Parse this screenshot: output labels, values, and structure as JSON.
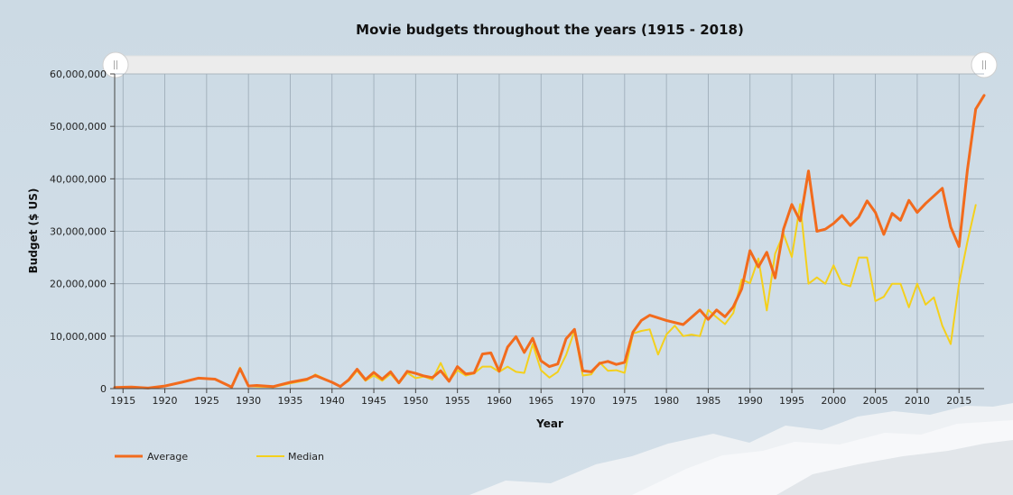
{
  "chart_data": {
    "type": "line",
    "title": "Movie budgets throughout the years (1915 - 2018)",
    "xlabel": "Year",
    "ylabel": "Budget ($ US)",
    "xlim": [
      1914,
      2018
    ],
    "ylim": [
      0,
      60000000
    ],
    "xticks": [
      1915,
      1920,
      1925,
      1930,
      1935,
      1940,
      1945,
      1950,
      1955,
      1960,
      1965,
      1970,
      1975,
      1980,
      1985,
      1990,
      1995,
      2000,
      2005,
      2010,
      2015
    ],
    "yticks": [
      0,
      10000000,
      20000000,
      30000000,
      40000000,
      50000000,
      60000000
    ],
    "ytick_labels": [
      "0",
      "10,000,000",
      "20,000,000",
      "30,000,000",
      "40,000,000",
      "50,000,000",
      "60,000,000"
    ],
    "grid": true,
    "legend_position": "bottom-left",
    "series": [
      {
        "name": "Average",
        "color": "#f26b1d",
        "points": [
          [
            1914,
            200000
          ],
          [
            1916,
            300000
          ],
          [
            1918,
            100000
          ],
          [
            1920,
            500000
          ],
          [
            1922,
            1200000
          ],
          [
            1924,
            2000000
          ],
          [
            1926,
            1800000
          ],
          [
            1928,
            300000
          ],
          [
            1929,
            3800000
          ],
          [
            1930,
            500000
          ],
          [
            1931,
            600000
          ],
          [
            1933,
            400000
          ],
          [
            1935,
            1200000
          ],
          [
            1937,
            1800000
          ],
          [
            1938,
            2500000
          ],
          [
            1940,
            1200000
          ],
          [
            1941,
            400000
          ],
          [
            1942,
            1700000
          ],
          [
            1943,
            3700000
          ],
          [
            1944,
            1700000
          ],
          [
            1945,
            3100000
          ],
          [
            1946,
            1800000
          ],
          [
            1947,
            3200000
          ],
          [
            1948,
            1100000
          ],
          [
            1949,
            3300000
          ],
          [
            1950,
            2900000
          ],
          [
            1951,
            2400000
          ],
          [
            1952,
            2100000
          ],
          [
            1953,
            3400000
          ],
          [
            1954,
            1400000
          ],
          [
            1955,
            4200000
          ],
          [
            1956,
            2800000
          ],
          [
            1957,
            3000000
          ],
          [
            1958,
            6600000
          ],
          [
            1959,
            6800000
          ],
          [
            1960,
            3300000
          ],
          [
            1961,
            7900000
          ],
          [
            1962,
            9900000
          ],
          [
            1963,
            6900000
          ],
          [
            1964,
            9600000
          ],
          [
            1965,
            5300000
          ],
          [
            1966,
            4200000
          ],
          [
            1967,
            4700000
          ],
          [
            1968,
            9500000
          ],
          [
            1969,
            11300000
          ],
          [
            1970,
            3400000
          ],
          [
            1971,
            3200000
          ],
          [
            1972,
            4800000
          ],
          [
            1973,
            5200000
          ],
          [
            1974,
            4600000
          ],
          [
            1975,
            5000000
          ],
          [
            1976,
            10800000
          ],
          [
            1977,
            13000000
          ],
          [
            1978,
            14000000
          ],
          [
            1980,
            13000000
          ],
          [
            1982,
            12200000
          ],
          [
            1984,
            15000000
          ],
          [
            1985,
            13200000
          ],
          [
            1986,
            15000000
          ],
          [
            1987,
            13700000
          ],
          [
            1988,
            15600000
          ],
          [
            1989,
            19000000
          ],
          [
            1990,
            26300000
          ],
          [
            1991,
            23200000
          ],
          [
            1992,
            26000000
          ],
          [
            1993,
            21100000
          ],
          [
            1994,
            30400000
          ],
          [
            1995,
            35100000
          ],
          [
            1996,
            32000000
          ],
          [
            1997,
            41500000
          ],
          [
            1998,
            30000000
          ],
          [
            1999,
            30400000
          ],
          [
            2000,
            31500000
          ],
          [
            2001,
            33000000
          ],
          [
            2002,
            31100000
          ],
          [
            2003,
            32700000
          ],
          [
            2004,
            35800000
          ],
          [
            2005,
            33600000
          ],
          [
            2006,
            29400000
          ],
          [
            2007,
            33400000
          ],
          [
            2008,
            32100000
          ],
          [
            2009,
            35900000
          ],
          [
            2010,
            33600000
          ],
          [
            2011,
            35300000
          ],
          [
            2013,
            38200000
          ],
          [
            2014,
            30800000
          ],
          [
            2015,
            27100000
          ],
          [
            2016,
            41700000
          ],
          [
            2017,
            53300000
          ],
          [
            2018,
            55900000
          ]
        ]
      },
      {
        "name": "Median",
        "color": "#f4d01c",
        "points": [
          [
            1914,
            200000
          ],
          [
            1916,
            300000
          ],
          [
            1918,
            100000
          ],
          [
            1920,
            500000
          ],
          [
            1922,
            1200000
          ],
          [
            1924,
            2000000
          ],
          [
            1926,
            1800000
          ],
          [
            1928,
            300000
          ],
          [
            1929,
            4000000
          ],
          [
            1930,
            500000
          ],
          [
            1931,
            400000
          ],
          [
            1933,
            300000
          ],
          [
            1935,
            1000000
          ],
          [
            1937,
            1600000
          ],
          [
            1938,
            2700000
          ],
          [
            1940,
            1200000
          ],
          [
            1941,
            400000
          ],
          [
            1942,
            1500000
          ],
          [
            1943,
            3400000
          ],
          [
            1944,
            1500000
          ],
          [
            1945,
            2500000
          ],
          [
            1946,
            1500000
          ],
          [
            1947,
            2800000
          ],
          [
            1948,
            1000000
          ],
          [
            1949,
            3000000
          ],
          [
            1950,
            2000000
          ],
          [
            1951,
            2300000
          ],
          [
            1952,
            1700000
          ],
          [
            1953,
            4900000
          ],
          [
            1954,
            1400000
          ],
          [
            1955,
            3500000
          ],
          [
            1956,
            2500000
          ],
          [
            1957,
            2900000
          ],
          [
            1958,
            4200000
          ],
          [
            1959,
            4200000
          ],
          [
            1960,
            3200000
          ],
          [
            1961,
            4200000
          ],
          [
            1962,
            3200000
          ],
          [
            1963,
            3000000
          ],
          [
            1964,
            8500000
          ],
          [
            1965,
            3500000
          ],
          [
            1966,
            2100000
          ],
          [
            1967,
            3200000
          ],
          [
            1968,
            6400000
          ],
          [
            1969,
            11000000
          ],
          [
            1970,
            2500000
          ],
          [
            1971,
            2700000
          ],
          [
            1972,
            5000000
          ],
          [
            1973,
            3400000
          ],
          [
            1974,
            3500000
          ],
          [
            1975,
            3000000
          ],
          [
            1976,
            10500000
          ],
          [
            1977,
            11000000
          ],
          [
            1978,
            11300000
          ],
          [
            1979,
            6500000
          ],
          [
            1980,
            10300000
          ],
          [
            1981,
            12000000
          ],
          [
            1982,
            10000000
          ],
          [
            1983,
            10300000
          ],
          [
            1984,
            10000000
          ],
          [
            1985,
            15000000
          ],
          [
            1986,
            13600000
          ],
          [
            1987,
            12300000
          ],
          [
            1988,
            14400000
          ],
          [
            1989,
            20800000
          ],
          [
            1990,
            20100000
          ],
          [
            1991,
            24800000
          ],
          [
            1992,
            14900000
          ],
          [
            1993,
            25700000
          ],
          [
            1994,
            29500000
          ],
          [
            1995,
            25100000
          ],
          [
            1996,
            35200000
          ],
          [
            1997,
            20000000
          ],
          [
            1998,
            21200000
          ],
          [
            1999,
            20000000
          ],
          [
            2000,
            23500000
          ],
          [
            2001,
            20000000
          ],
          [
            2002,
            19500000
          ],
          [
            2003,
            25000000
          ],
          [
            2004,
            25000000
          ],
          [
            2005,
            16700000
          ],
          [
            2006,
            17500000
          ],
          [
            2007,
            20000000
          ],
          [
            2008,
            20000000
          ],
          [
            2009,
            15500000
          ],
          [
            2010,
            20000000
          ],
          [
            2011,
            16000000
          ],
          [
            2012,
            17400000
          ],
          [
            2013,
            12000000
          ],
          [
            2014,
            8500000
          ],
          [
            2015,
            20000000
          ],
          [
            2016,
            28000000
          ],
          [
            2017,
            35000000
          ]
        ]
      }
    ]
  }
}
